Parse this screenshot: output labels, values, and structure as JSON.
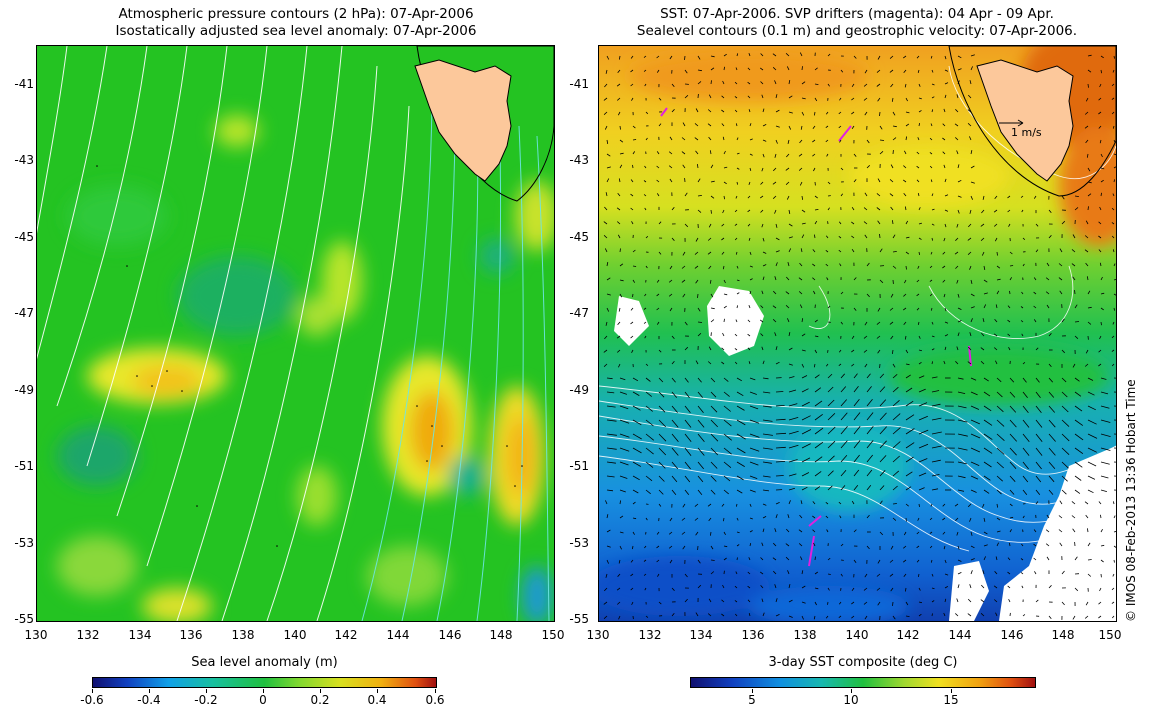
{
  "left_panel": {
    "title_line1": "Atmospheric pressure contours (2 hPa): 07-Apr-2006",
    "title_line2": "Isostatically adjusted sea level anomaly: 07-Apr-2006",
    "y_ticks": [
      "-41",
      "-43",
      "-45",
      "-47",
      "-49",
      "-51",
      "-53",
      "-55"
    ],
    "x_ticks": [
      "130",
      "132",
      "134",
      "136",
      "138",
      "140",
      "142",
      "144",
      "146",
      "148",
      "150"
    ],
    "colorbar": {
      "label": "Sea level anomaly (m)",
      "ticks": [
        "-0.6",
        "-0.4",
        "-0.2",
        "0",
        "0.2",
        "0.4",
        "0.6"
      ],
      "range": [
        -0.6,
        0.6
      ]
    }
  },
  "right_panel": {
    "title_line1": "SST: 07-Apr-2006. SVP drifters (magenta): 04 Apr - 09 Apr.",
    "title_line2": "Sealevel contours (0.1 m) and geostrophic velocity: 07-Apr-2006.",
    "y_ticks": [
      "-41",
      "-43",
      "-45",
      "-47",
      "-49",
      "-51",
      "-53",
      "-55"
    ],
    "x_ticks": [
      "130",
      "132",
      "134",
      "136",
      "138",
      "140",
      "142",
      "144",
      "146",
      "148",
      "150"
    ],
    "velocity_key": "1 m/s",
    "colorbar": {
      "label": "3-day SST composite (deg C)",
      "ticks": [
        "5",
        "10",
        "15"
      ],
      "range": [
        1,
        19
      ]
    }
  },
  "credit": "© IMOS 08-Feb-2013 13:36 Hobart Time",
  "colors": {
    "land": "#fcc89b",
    "slev_base": "#22c41e",
    "sst_warm": "#e88a1a",
    "sst_cold": "#1a80e0"
  }
}
